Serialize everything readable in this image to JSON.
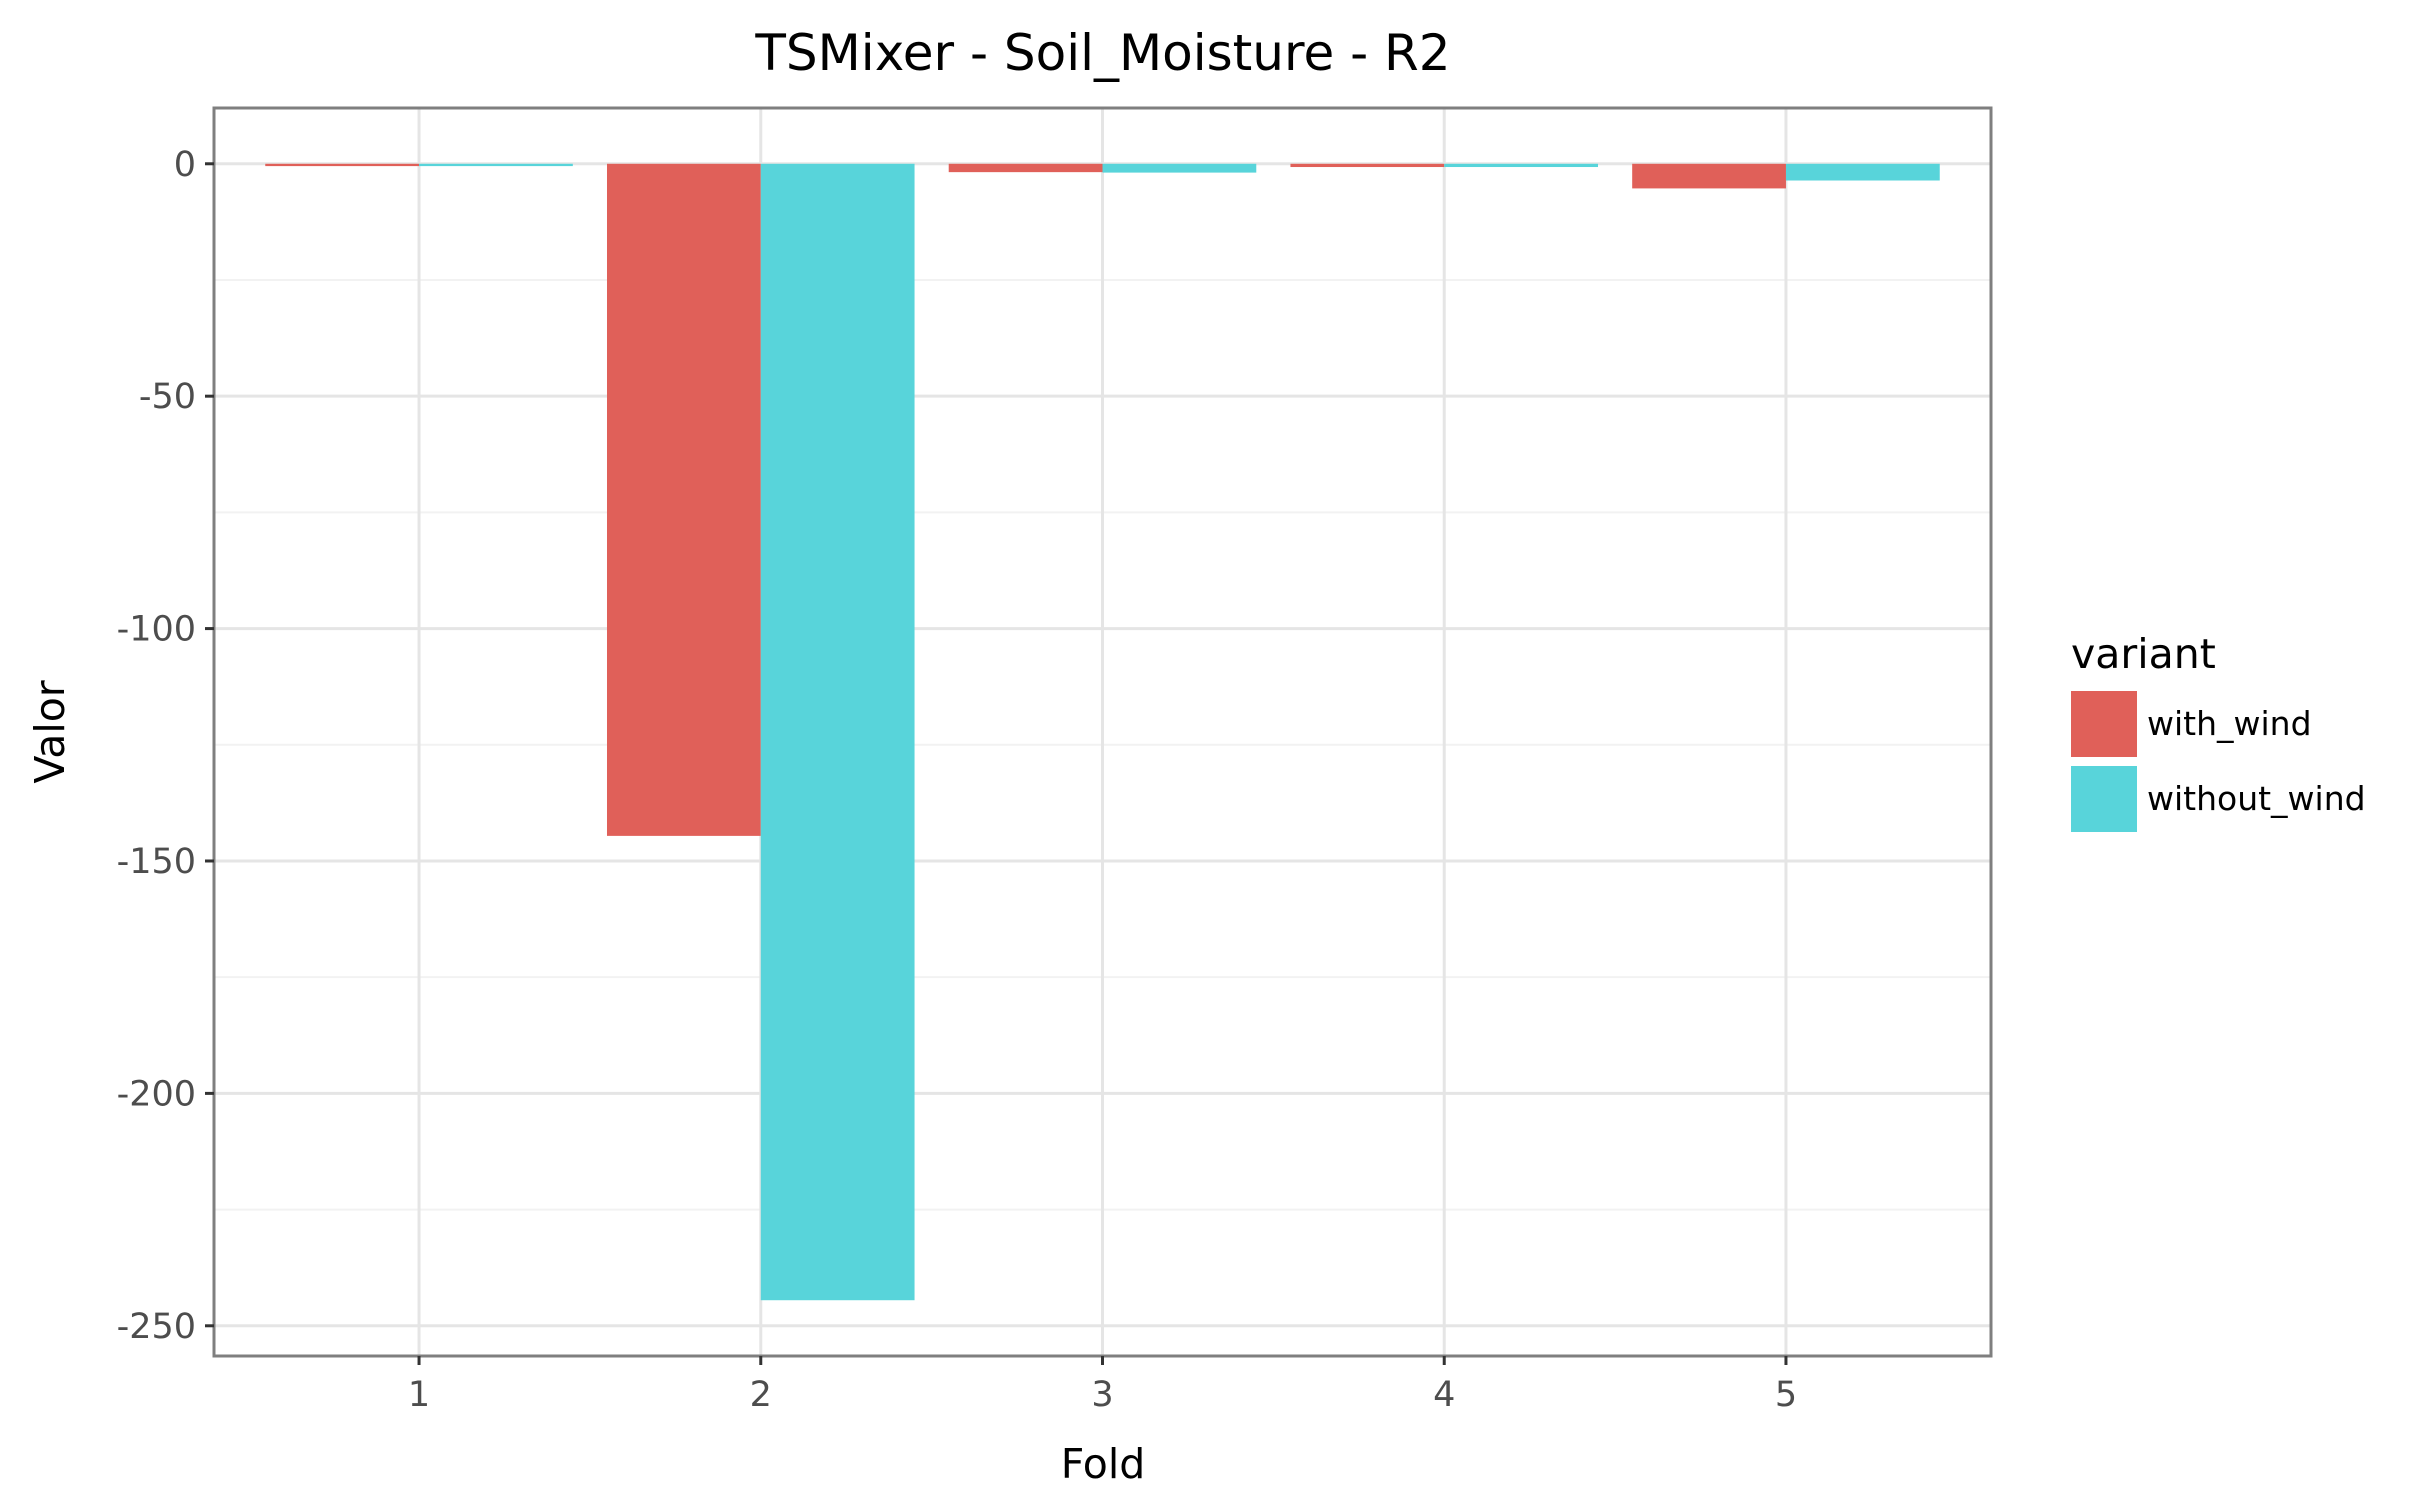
{
  "chart_data": {
    "type": "bar",
    "title": "TSMixer - Soil_Moisture - R2",
    "xlabel": "Fold",
    "ylabel": "Valor",
    "categories": [
      "1",
      "2",
      "3",
      "4",
      "5"
    ],
    "series": [
      {
        "name": "with_wind",
        "color": "#E06059",
        "values": [
          -0.5,
          -144.6,
          -1.8,
          -0.7,
          -5.3
        ]
      },
      {
        "name": "without_wind",
        "color": "#58D4DA",
        "values": [
          -0.5,
          -244.5,
          -1.9,
          -0.7,
          -3.6
        ]
      }
    ],
    "ylim": [
      -256.5,
      12
    ],
    "yticks": [
      0,
      -50,
      -100,
      -150,
      -200,
      -250
    ],
    "ytick_labels": [
      "0",
      "-50",
      "-100",
      "-150",
      "-200",
      "-250"
    ],
    "grid": true,
    "legend": {
      "title": "variant",
      "position": "right"
    }
  }
}
